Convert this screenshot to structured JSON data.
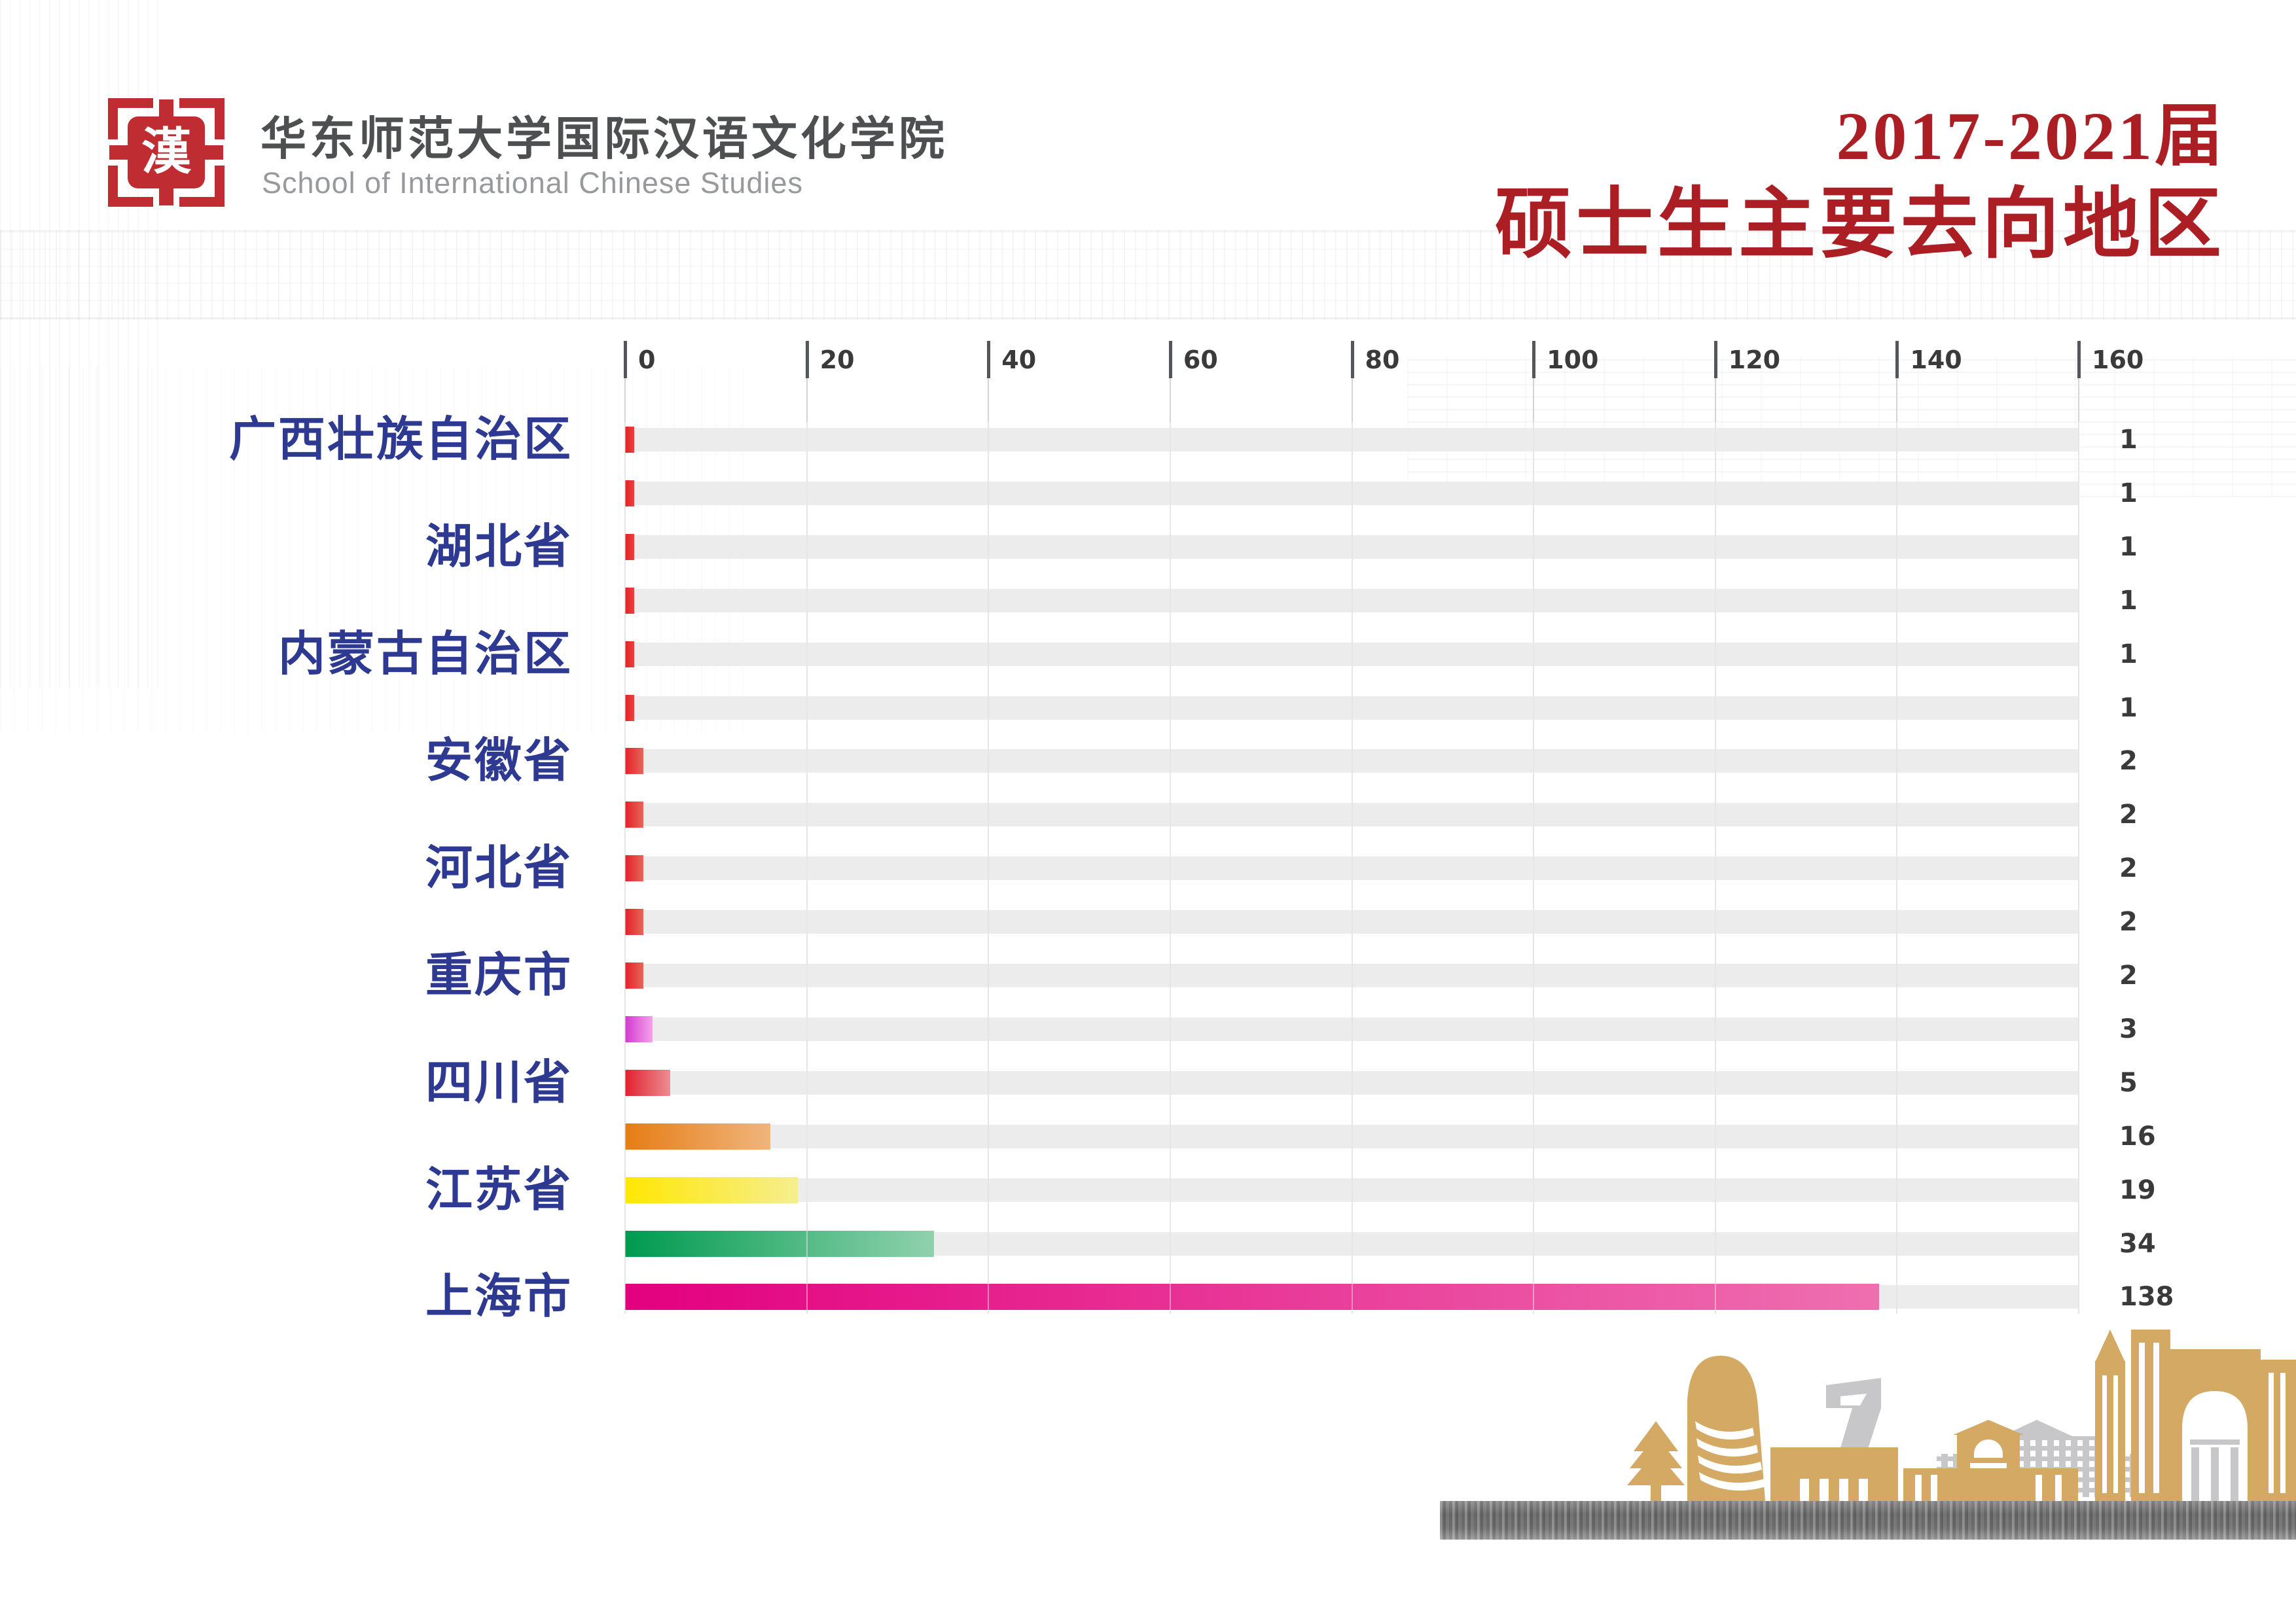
{
  "header": {
    "logo_glyph": "漢",
    "org_name_zh": "华东师范大学国际汉语文化学院",
    "org_name_en": "School of International Chinese Studies",
    "title_line1": "2017-2021届",
    "title_line2": "硕士生主要去向地区"
  },
  "colors": {
    "logo_red": "#bf2c31",
    "title_red": "#ab1f24",
    "label_blue": "#2e3a92",
    "track_gray": "#ececec",
    "bar_red": "#e32127",
    "art_gold": "#d3a963",
    "art_gray": "#c7c7c9"
  },
  "chart_data": {
    "type": "bar",
    "orientation": "horizontal",
    "title": "2017-2021届硕士生主要去向地区",
    "xlim": [
      0,
      160
    ],
    "x_ticks": [
      0,
      20,
      40,
      60,
      80,
      100,
      120,
      140,
      160
    ],
    "grid": true,
    "legend": false,
    "categories": [
      "广西壮族自治区",
      "湖北省",
      "内蒙古自治区",
      "安徽省",
      "河北省",
      "重庆市",
      "四川省",
      "江苏省",
      "上海市"
    ],
    "rows": [
      {
        "label": "广西壮族自治区",
        "value": 1,
        "color": [
          "#e32127",
          "#e6443f"
        ]
      },
      {
        "label": "",
        "value": 1,
        "color": [
          "#e32127",
          "#e6443f"
        ]
      },
      {
        "label": "湖北省",
        "value": 1,
        "color": [
          "#e32127",
          "#e6443f"
        ]
      },
      {
        "label": "",
        "value": 1,
        "color": [
          "#e32127",
          "#e6443f"
        ]
      },
      {
        "label": "内蒙古自治区",
        "value": 1,
        "color": [
          "#e32127",
          "#e6443f"
        ]
      },
      {
        "label": "",
        "value": 1,
        "color": [
          "#e32127",
          "#e6443f"
        ]
      },
      {
        "label": "安徽省",
        "value": 2,
        "color": [
          "#e32127",
          "#e9645c"
        ]
      },
      {
        "label": "",
        "value": 2,
        "color": [
          "#e32127",
          "#e9645c"
        ]
      },
      {
        "label": "河北省",
        "value": 2,
        "color": [
          "#e32127",
          "#e9645c"
        ]
      },
      {
        "label": "",
        "value": 2,
        "color": [
          "#e32127",
          "#e9645c"
        ]
      },
      {
        "label": "重庆市",
        "value": 2,
        "color": [
          "#e32127",
          "#e9645c"
        ]
      },
      {
        "label": "",
        "value": 3,
        "color": [
          "#d23ad0",
          "#f2a3e9"
        ]
      },
      {
        "label": "四川省",
        "value": 5,
        "color": [
          "#e1202d",
          "#eb8d92"
        ]
      },
      {
        "label": "",
        "value": 16,
        "color": [
          "#e67d15",
          "#efb57c"
        ]
      },
      {
        "label": "江苏省",
        "value": 19,
        "color": [
          "#ffe703",
          "#f5ee8e"
        ]
      },
      {
        "label": "",
        "value": 34,
        "color": [
          "#009a4f",
          "#90d1ad"
        ]
      },
      {
        "label": "上海市",
        "value": 138,
        "color": [
          "#e3007f",
          "#ee6fb0"
        ]
      }
    ]
  }
}
